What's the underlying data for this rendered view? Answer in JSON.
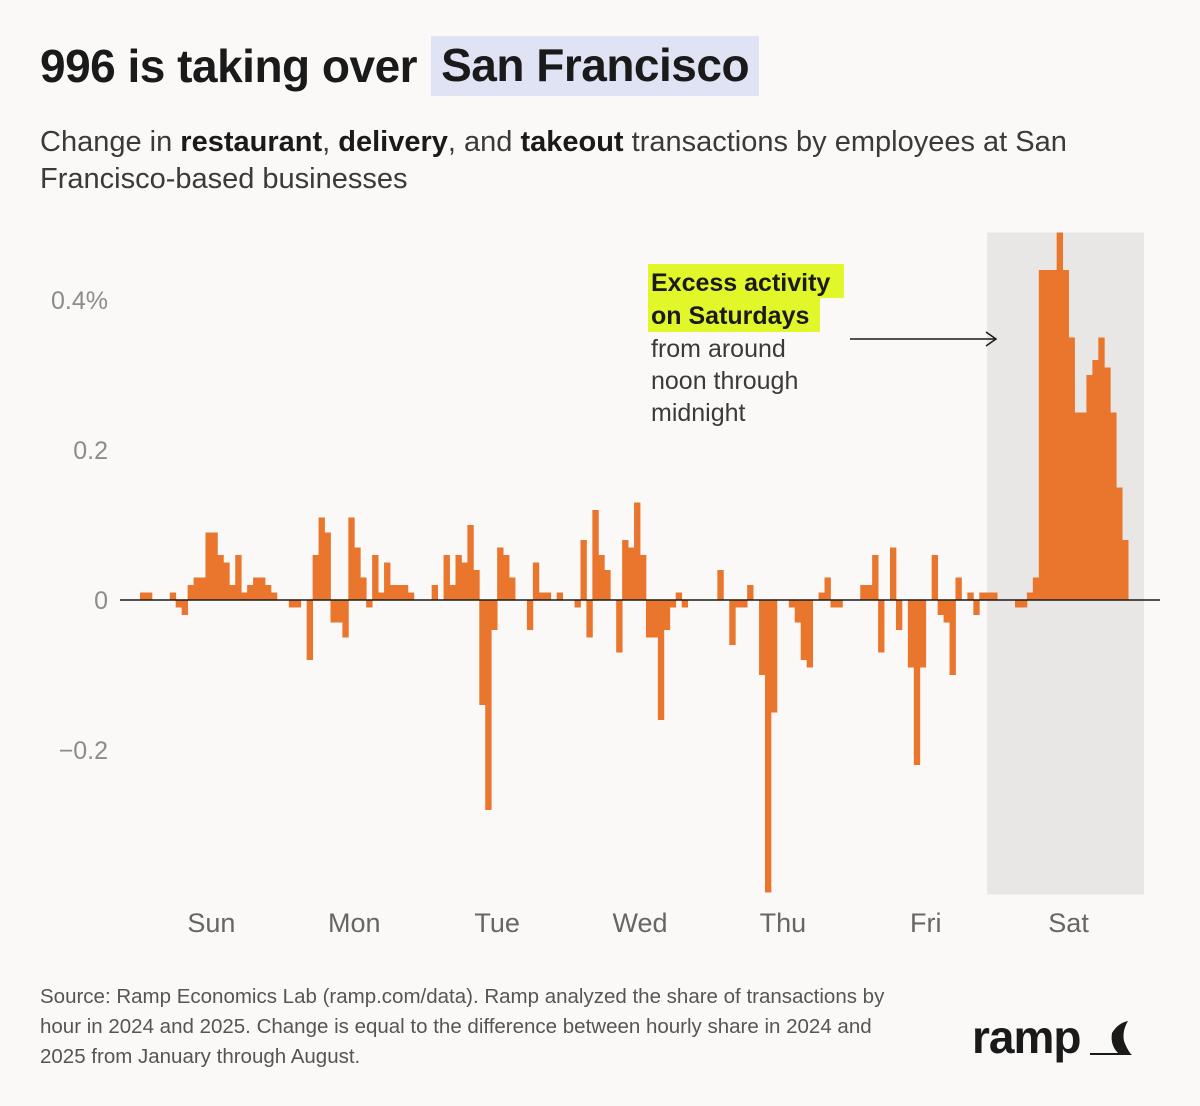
{
  "header": {
    "title_part1": "996 is taking over",
    "title_part2": "San Francisco",
    "subtitle": {
      "t1": "Change in ",
      "b1": "restaurant",
      "t2": ", ",
      "b2": "delivery",
      "t3": ", and ",
      "b3": "takeout",
      "t4": " transactions by employees at San Francisco-based businesses"
    }
  },
  "colors": {
    "bar": "#ea762e",
    "highlight_title": "#dfe3f3",
    "highlight_annotation": "#e2f72a",
    "shade": "#e8e7e5",
    "axis": "#1a1a1a",
    "tick_label": "#8c8c8c",
    "day_label": "#666666"
  },
  "chart_data": {
    "type": "bar",
    "title": "",
    "xlabel": "",
    "ylabel": "",
    "ylim": [
      -0.39,
      0.49
    ],
    "yticks": [
      {
        "value": 0.4,
        "label": "0.4%"
      },
      {
        "value": 0.2,
        "label": "0.2"
      },
      {
        "value": 0,
        "label": "0"
      },
      {
        "value": -0.2,
        "label": "−0.2"
      }
    ],
    "grid": false,
    "days": [
      "Sun",
      "Mon",
      "Tue",
      "Wed",
      "Thu",
      "Fri",
      "Sat"
    ],
    "hours_per_day": 24,
    "highlight_day": "Sat",
    "series": [
      {
        "values": [
          0.01,
          0.01,
          0.0,
          0.0,
          0.0,
          0.01,
          -0.01,
          -0.02,
          0.02,
          0.03,
          0.03,
          0.09,
          0.09,
          0.06,
          0.05,
          0.02,
          0.06,
          0.01,
          0.02,
          0.03,
          0.03,
          0.02,
          0.01,
          0.0,
          0.0,
          -0.01,
          -0.01,
          0.0,
          -0.08,
          0.06,
          0.11,
          0.09,
          -0.03,
          -0.03,
          -0.05,
          0.11,
          0.07,
          0.03,
          -0.01,
          0.06,
          0.01,
          0.05,
          0.02,
          0.02,
          0.02,
          0.01,
          0.0,
          0.0,
          0.0,
          0.02,
          0.0,
          0.06,
          0.02,
          0.06,
          0.05,
          0.1,
          0.04,
          -0.14,
          -0.28,
          -0.04,
          0.07,
          0.06,
          0.03,
          0.0,
          0.0,
          -0.04,
          0.05,
          0.01,
          0.01,
          0.0,
          0.01,
          0.0,
          0.0,
          -0.01,
          0.08,
          -0.05,
          0.12,
          0.06,
          0.04,
          0.0,
          -0.07,
          0.08,
          0.07,
          0.13,
          0.06,
          -0.05,
          -0.05,
          -0.16,
          -0.04,
          -0.01,
          0.01,
          -0.01,
          0.0,
          0.0,
          0.0,
          0.0,
          0.0,
          0.04,
          0.0,
          -0.06,
          -0.01,
          -0.01,
          0.02,
          0.0,
          -0.1,
          -0.39,
          -0.15,
          0.0,
          0.0,
          -0.01,
          -0.03,
          -0.08,
          -0.09,
          0.0,
          0.01,
          0.03,
          -0.01,
          -0.01,
          0.0,
          0.0,
          0.0,
          0.02,
          0.02,
          0.06,
          -0.07,
          0.0,
          0.07,
          -0.04,
          0.0,
          -0.09,
          -0.22,
          -0.09,
          0.0,
          0.06,
          -0.02,
          -0.03,
          -0.1,
          0.03,
          0.0,
          0.01,
          -0.02,
          0.01,
          0.01,
          0.01,
          0.0,
          0.0,
          0.0,
          -0.01,
          -0.01,
          0.01,
          0.03,
          0.44,
          0.44,
          0.44,
          0.49,
          0.44,
          0.35,
          0.25,
          0.25,
          0.3,
          0.32,
          0.35,
          0.31,
          0.25,
          0.15,
          0.08,
          0.0,
          0.0
        ]
      }
    ],
    "annotation": {
      "highlight_line1": "Excess activity",
      "highlight_line2": "on Saturdays",
      "line3": "from around",
      "line4": "noon through",
      "line5": "midnight"
    }
  },
  "footer": {
    "source": "Source: Ramp Economics Lab (ramp.com/data). Ramp analyzed the share of transactions by hour in 2024 and 2025. Change is equal to the difference between hourly share in 2024 and 2025 from January through August.",
    "logo_text": "ramp",
    "logo_icon": "ramp-logo-icon"
  }
}
